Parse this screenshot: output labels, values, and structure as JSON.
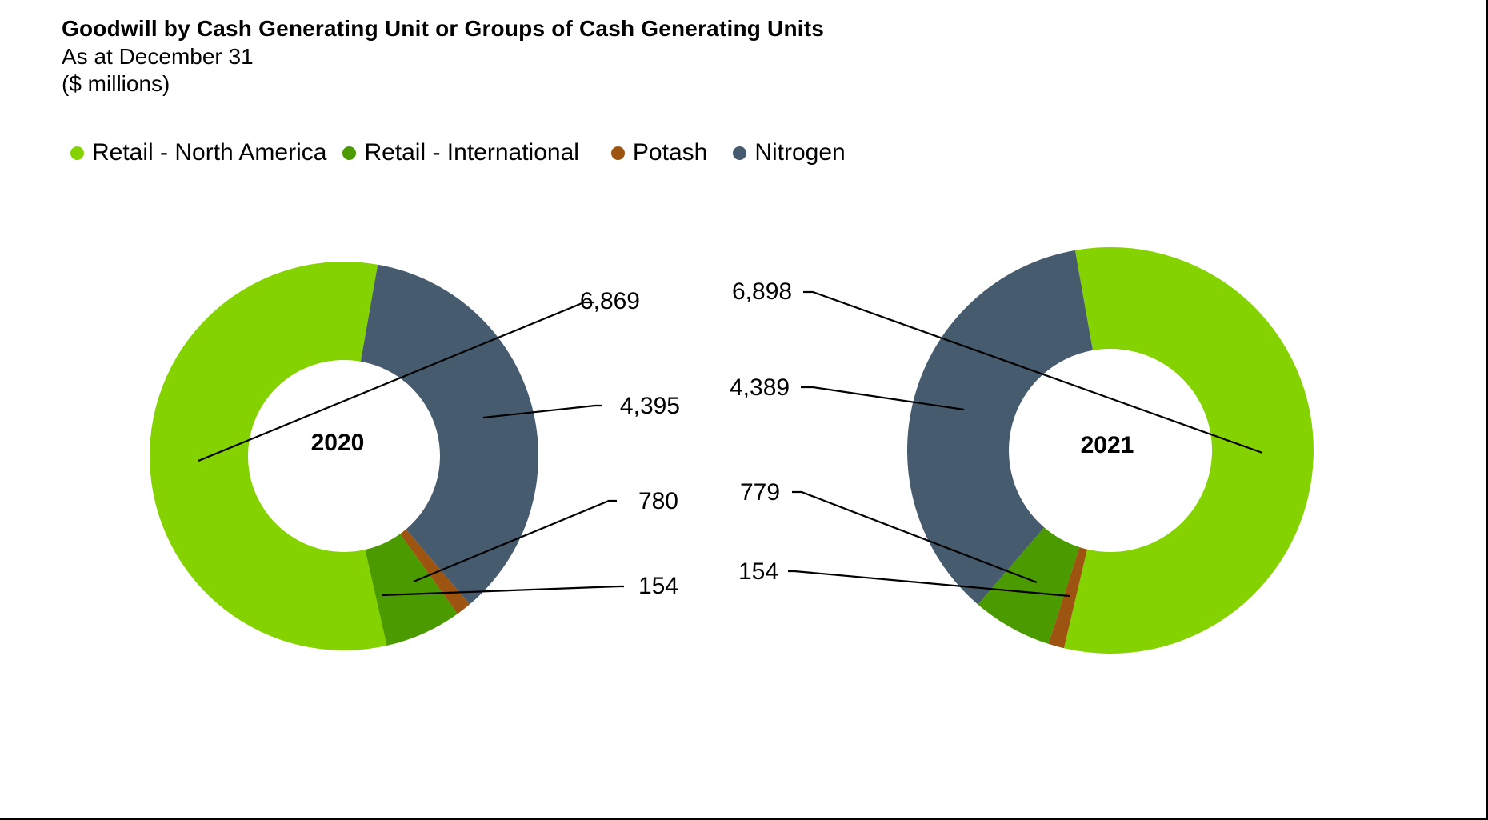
{
  "chart_data": {
    "type": "pie",
    "style": "donut",
    "title": "Goodwill by Cash Generating Unit or Groups of Cash Generating Units",
    "subtitle": [
      "As at December 31",
      "($ millions)"
    ],
    "legend": {
      "placement": "top-left",
      "orientation": "horizontal"
    },
    "categories": [
      "Retail - North America",
      "Retail - International",
      "Potash",
      "Nitrogen"
    ],
    "colors": [
      "#84D200",
      "#4A9A00",
      "#9C5410",
      "#465C6E"
    ],
    "charts": [
      {
        "name": "2020",
        "label": "2020",
        "values": [
          6869,
          780,
          154,
          4395
        ],
        "data_labels": [
          "6,869",
          "780",
          "154",
          "4,395"
        ]
      },
      {
        "name": "2021",
        "label": "2021",
        "values": [
          6898,
          779,
          154,
          4389
        ],
        "data_labels": [
          "6,898",
          "779",
          "154",
          "4,389"
        ]
      }
    ]
  }
}
